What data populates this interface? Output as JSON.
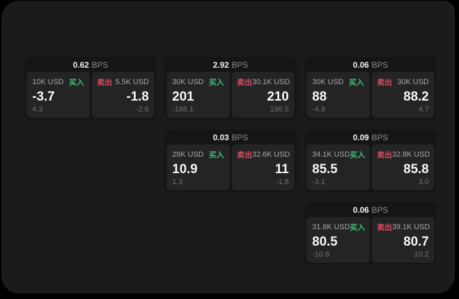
{
  "labels": {
    "bps_unit": "BPS",
    "buy": "买入",
    "sell": "卖出"
  },
  "colors": {
    "buy_green": "#3fbf74",
    "sell_red": "#dd4a5f",
    "page_bg": "#1b1b1c",
    "card_bg": "#151516",
    "panel_bg": "#242425"
  },
  "cards": [
    {
      "bps": "0.62",
      "grid": {
        "col": 1,
        "row": 1
      },
      "buy": {
        "amount": "10K USD",
        "value": "-3.7",
        "sub": "4.3"
      },
      "sell": {
        "amount": "5.5K USD",
        "value": "-1.8",
        "sub": "-2.6"
      }
    },
    {
      "bps": "2.92",
      "grid": {
        "col": 2,
        "row": 1
      },
      "buy": {
        "amount": "30K USD",
        "value": "201",
        "sub": "-188.1"
      },
      "sell": {
        "amount": "30.1K USD",
        "value": "210",
        "sub": "196.5"
      }
    },
    {
      "bps": "0.06",
      "grid": {
        "col": 3,
        "row": 1
      },
      "buy": {
        "amount": "30K USD",
        "value": "88",
        "sub": "-4.9"
      },
      "sell": {
        "amount": "30K USD",
        "value": "88.2",
        "sub": "4.7"
      }
    },
    {
      "bps": "0.03",
      "grid": {
        "col": 2,
        "row": 2
      },
      "buy": {
        "amount": "28K USD",
        "value": "10.9",
        "sub": "1.3"
      },
      "sell": {
        "amount": "32.6K USD",
        "value": "11",
        "sub": "-1.8"
      }
    },
    {
      "bps": "0.09",
      "grid": {
        "col": 3,
        "row": 2
      },
      "buy": {
        "amount": "34.1K USD",
        "value": "85.5",
        "sub": "-3.1"
      },
      "sell": {
        "amount": "32.8K USD",
        "value": "85.8",
        "sub": "3.0"
      }
    },
    {
      "bps": "0.06",
      "grid": {
        "col": 3,
        "row": 3
      },
      "buy": {
        "amount": "31.8K USD",
        "value": "80.5",
        "sub": "-10.8"
      },
      "sell": {
        "amount": "39.1K USD",
        "value": "80.7",
        "sub": "10.2"
      }
    }
  ]
}
